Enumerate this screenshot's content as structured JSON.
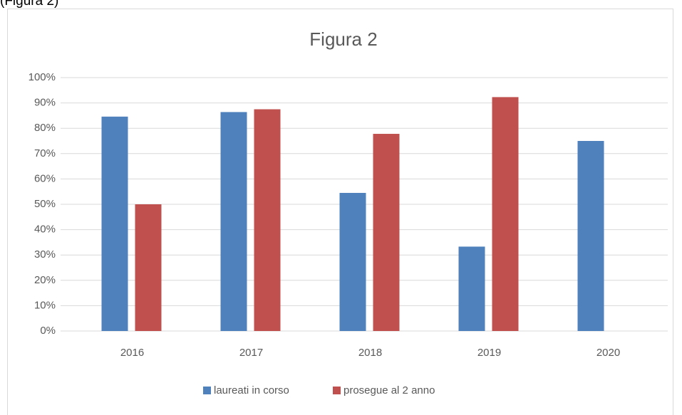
{
  "note": "(Figura 2)",
  "chart_data": {
    "type": "bar",
    "title": "Figura 2",
    "categories": [
      "2016",
      "2017",
      "2018",
      "2019",
      "2020"
    ],
    "series": [
      {
        "name": "laureati in corso",
        "color": "#4f81bd",
        "values": [
          84.6,
          86.4,
          54.5,
          33.3,
          75
        ]
      },
      {
        "name": "prosegue al 2 anno",
        "color": "#c0504d",
        "values": [
          50,
          87.5,
          77.8,
          92.3,
          null
        ]
      }
    ],
    "ylim": [
      0,
      100
    ],
    "yticks": [
      {
        "value": 0,
        "label": "0%"
      },
      {
        "value": 10,
        "label": "10%"
      },
      {
        "value": 20,
        "label": "20%"
      },
      {
        "value": 30,
        "label": "30%"
      },
      {
        "value": 40,
        "label": "40%"
      },
      {
        "value": 50,
        "label": "50%"
      },
      {
        "value": 60,
        "label": "60%"
      },
      {
        "value": 70,
        "label": "70%"
      },
      {
        "value": 80,
        "label": "80%"
      },
      {
        "value": 90,
        "label": "90%"
      },
      {
        "value": 100,
        "label": "100%"
      }
    ],
    "grid": true,
    "legend": "bottom"
  }
}
